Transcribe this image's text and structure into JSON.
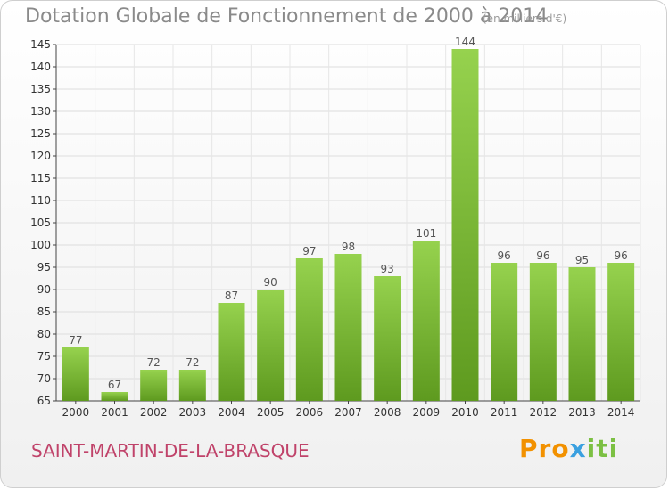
{
  "chart_data": {
    "type": "bar",
    "title": "Dotation Globale de Fonctionnement de 2000 à 2014",
    "subtitle": "(en milliers d'€)",
    "categories": [
      "2000",
      "2001",
      "2002",
      "2003",
      "2004",
      "2005",
      "2006",
      "2007",
      "2008",
      "2009",
      "2010",
      "2011",
      "2012",
      "2013",
      "2014"
    ],
    "values": [
      77,
      67,
      72,
      72,
      87,
      90,
      97,
      98,
      93,
      101,
      144,
      96,
      96,
      95,
      96
    ],
    "ylim": [
      65,
      145
    ],
    "yticks": [
      65,
      70,
      75,
      80,
      85,
      90,
      95,
      100,
      105,
      110,
      115,
      120,
      125,
      130,
      135,
      140,
      145
    ],
    "xlabel": "",
    "ylabel": "",
    "grid": true,
    "bar_color": "#7cba3a"
  },
  "commune": "SAINT-MARTIN-DE-LA-BRASQUE",
  "logo": {
    "part1": "Pro",
    "part2": "x",
    "part3": "iti"
  }
}
